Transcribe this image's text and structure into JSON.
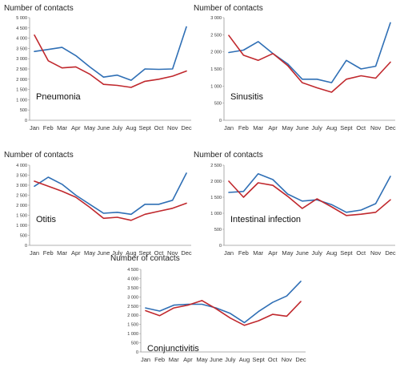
{
  "colors": {
    "blue": "#2f6fb5",
    "red": "#c0282d"
  },
  "chart_data": [
    {
      "type": "line",
      "title": "Pneumonia",
      "ylabel": "Number of contacts",
      "categories": [
        "Jan",
        "Feb",
        "Mar",
        "Apr",
        "May",
        "June",
        "July",
        "Aug",
        "Sept",
        "Oct",
        "Nov",
        "Dec"
      ],
      "ylim": [
        0,
        5000
      ],
      "yticks": [
        0,
        500,
        1000,
        1500,
        2000,
        2500,
        3000,
        3500,
        4000,
        4500,
        5000
      ],
      "ytick_labels": [
        "0",
        "500",
        "1 000",
        "1 500",
        "2 000",
        "2 500",
        "3 000",
        "3 500",
        "4 000",
        "4 500",
        "5 000"
      ],
      "series": [
        {
          "color": "#2f6fb5",
          "values": [
            3350,
            3450,
            3550,
            3150,
            2600,
            2100,
            2200,
            1950,
            2500,
            2480,
            2500,
            4550
          ]
        },
        {
          "color": "#c0282d",
          "values": [
            4150,
            2900,
            2550,
            2600,
            2250,
            1750,
            1700,
            1600,
            1900,
            2000,
            2150,
            2400
          ]
        }
      ]
    },
    {
      "type": "line",
      "title": "Sinusitis",
      "ylabel": "Number of contacts",
      "categories": [
        "Jan",
        "Feb",
        "Mar",
        "Apr",
        "May",
        "June",
        "July",
        "Aug",
        "Sept",
        "Oct",
        "Nov",
        "Dec"
      ],
      "ylim": [
        0,
        3000
      ],
      "yticks": [
        0,
        500,
        1000,
        1500,
        2000,
        2500,
        3000
      ],
      "ytick_labels": [
        "0",
        "500",
        "1 000",
        "1 500",
        "2 000",
        "2 500",
        "3 000"
      ],
      "series": [
        {
          "color": "#2f6fb5",
          "values": [
            1980,
            2050,
            2300,
            1950,
            1650,
            1200,
            1200,
            1100,
            1750,
            1500,
            1580,
            2850
          ]
        },
        {
          "color": "#c0282d",
          "values": [
            2480,
            1900,
            1750,
            1950,
            1600,
            1100,
            950,
            820,
            1200,
            1300,
            1230,
            1700
          ]
        }
      ]
    },
    {
      "type": "line",
      "title": "Otitis",
      "ylabel": "Number of contacts",
      "categories": [
        "Jan",
        "Feb",
        "Mar",
        "Apr",
        "May",
        "June",
        "July",
        "Aug",
        "Sept",
        "Oct",
        "Nov",
        "Dec"
      ],
      "ylim": [
        0,
        4000
      ],
      "yticks": [
        0,
        500,
        1000,
        1500,
        2000,
        2500,
        3000,
        3500,
        4000
      ],
      "ytick_labels": [
        "0",
        "500",
        "1 000",
        "1 500",
        "2 000",
        "2 500",
        "3 000",
        "3 500",
        "4 000"
      ],
      "series": [
        {
          "color": "#2f6fb5",
          "values": [
            2950,
            3400,
            3050,
            2500,
            2050,
            1600,
            1650,
            1550,
            2050,
            2050,
            2250,
            3600
          ]
        },
        {
          "color": "#c0282d",
          "values": [
            3200,
            2950,
            2700,
            2400,
            1900,
            1350,
            1400,
            1250,
            1550,
            1700,
            1850,
            2100
          ]
        }
      ]
    },
    {
      "type": "line",
      "title": "Intestinal infection",
      "ylabel": "Number of contacts",
      "categories": [
        "Jan",
        "Feb",
        "Mar",
        "Apr",
        "May",
        "June",
        "July",
        "Aug",
        "Sept",
        "Oct",
        "Nov",
        "Dec"
      ],
      "ylim": [
        0,
        2500
      ],
      "yticks": [
        0,
        500,
        1000,
        1500,
        2000,
        2500
      ],
      "ytick_labels": [
        "0",
        "500",
        "1 000",
        "1 500",
        "2 000",
        "2 500"
      ],
      "series": [
        {
          "color": "#2f6fb5",
          "values": [
            1650,
            1680,
            2230,
            2050,
            1600,
            1380,
            1420,
            1270,
            1030,
            1100,
            1300,
            2150
          ]
        },
        {
          "color": "#c0282d",
          "values": [
            2000,
            1500,
            1950,
            1870,
            1530,
            1150,
            1450,
            1200,
            930,
            970,
            1030,
            1420
          ]
        }
      ]
    },
    {
      "type": "line",
      "title": "Conjunctivitis",
      "ylabel": "Number of contacts",
      "categories": [
        "Jan",
        "Feb",
        "Mar",
        "Apr",
        "May",
        "June",
        "July",
        "Aug",
        "Sept",
        "Oct",
        "Nov",
        "Dec"
      ],
      "ylim": [
        0,
        4500
      ],
      "yticks": [
        0,
        500,
        1000,
        1500,
        2000,
        2500,
        3000,
        3500,
        4000,
        4500
      ],
      "ytick_labels": [
        "0",
        "500",
        "1 000",
        "1 500",
        "2 000",
        "2 500",
        "3 000",
        "3 500",
        "4 000",
        "4 500"
      ],
      "series": [
        {
          "color": "#2f6fb5",
          "values": [
            2400,
            2230,
            2550,
            2600,
            2600,
            2400,
            2100,
            1600,
            2200,
            2700,
            3050,
            3850
          ]
        },
        {
          "color": "#c0282d",
          "values": [
            2250,
            1980,
            2400,
            2550,
            2800,
            2350,
            1850,
            1450,
            1700,
            2050,
            1950,
            2750
          ]
        }
      ]
    }
  ]
}
